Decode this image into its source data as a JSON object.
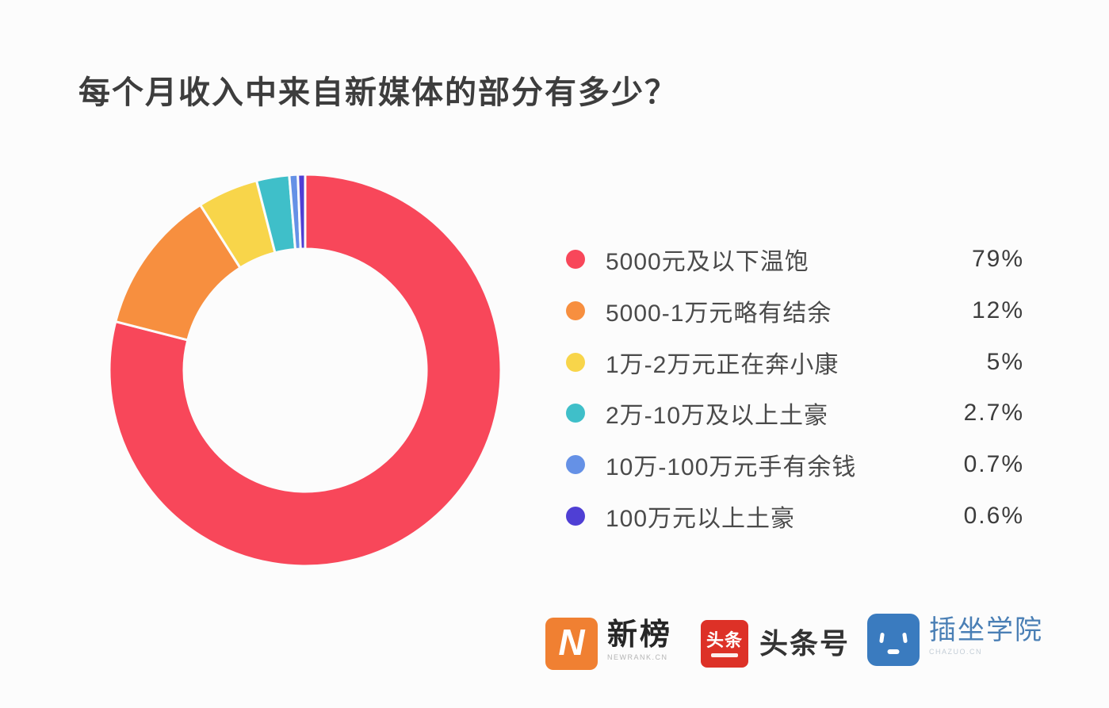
{
  "page": {
    "background": "#fcfcfc",
    "title": "每个月收入中来自新媒体的部分有多少？"
  },
  "chart_data": {
    "type": "pie",
    "subtype": "donut",
    "title": "每个月收入中来自新媒体的部分有多少？",
    "start_angle_deg": 0,
    "direction": "clockwise",
    "categories": [
      "5000元及以下温饱",
      "5000-1万元略有结余",
      "1万-2万元正在奔小康",
      "2万-10万及以上土豪",
      "10万-100万元手有余钱",
      "100万元以上土豪"
    ],
    "values": [
      79,
      12,
      5,
      2.7,
      0.7,
      0.6
    ],
    "value_labels": [
      "79%",
      "12%",
      "5%",
      "2.7%",
      "0.7%",
      "0.6%"
    ],
    "colors": [
      "#f8475a",
      "#f78f3f",
      "#f8d54a",
      "#3fbfc9",
      "#6591e6",
      "#4f3fd4"
    ],
    "legend_position": "right",
    "hole_ratio": 0.62
  },
  "footer": {
    "logos": [
      {
        "name": "newrank",
        "icon": "newrank-n-icon",
        "icon_letter": "N",
        "icon_color": "#f08032",
        "text": "新榜",
        "subtext": "NEWRANK.CN"
      },
      {
        "name": "toutiao",
        "icon": "toutiao-icon",
        "icon_text": "头条",
        "icon_color": "#dd3127",
        "text": "头条号"
      },
      {
        "name": "chazuo",
        "icon": "chazuo-face-icon",
        "icon_color": "#3a7bbf",
        "text": "插坐学院",
        "subtext": "CHAZUO.CN"
      }
    ]
  }
}
